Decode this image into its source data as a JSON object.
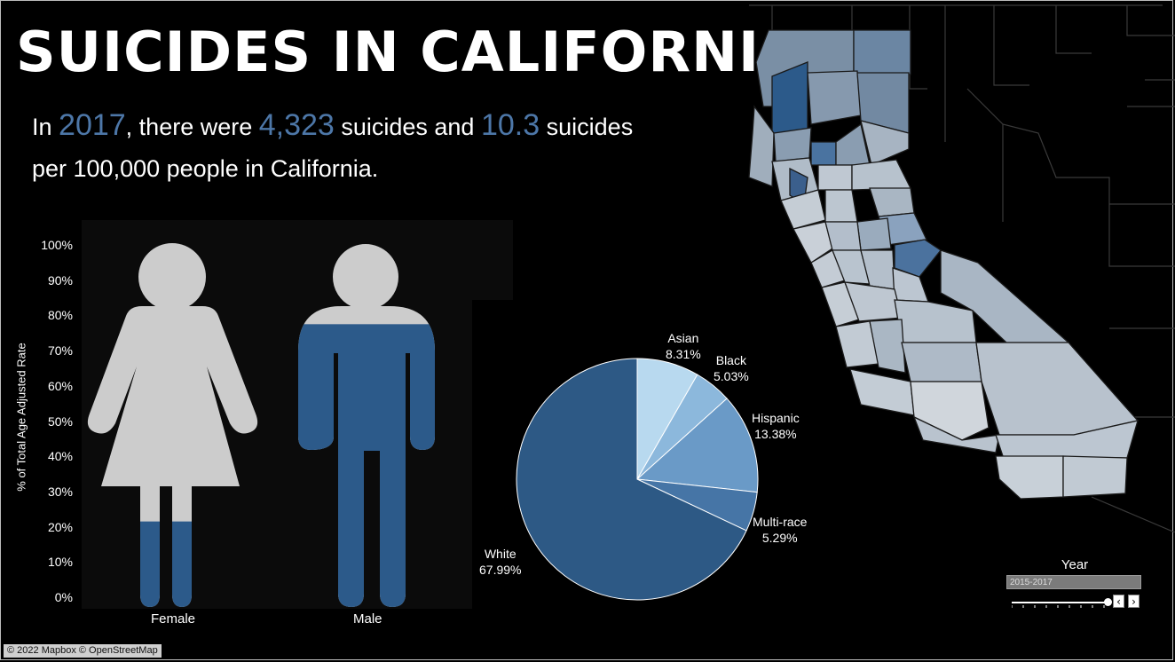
{
  "header": {
    "title": "SUICIDES IN CALIFORNIA",
    "summary": {
      "prefix": "In ",
      "year": "2017",
      "part2": ", there were ",
      "count": "4,323",
      "part3": " suicides and ",
      "rate": "10.3",
      "part4": " suicides",
      "line2": "per 100,000 people in California."
    }
  },
  "colors": {
    "accent": "#4d77a8",
    "figure_fill": "#2c5a8a",
    "figure_empty": "#cccccc",
    "panel_bg": "#0b0b0b"
  },
  "chart_data": [
    {
      "type": "bar",
      "categories": [
        "Female",
        "Male"
      ],
      "values": [
        21.5,
        77.5
      ],
      "ylabel": "% of Total Age Adjusted Rate",
      "ylim": [
        0,
        100
      ],
      "yticks": [
        "0%",
        "10%",
        "20%",
        "30%",
        "40%",
        "50%",
        "60%",
        "70%",
        "80%",
        "90%",
        "100%"
      ]
    },
    {
      "type": "pie",
      "slices": [
        {
          "label": "Asian",
          "value": 8.31,
          "value_label": "8.31%",
          "color": "#b8d9ef"
        },
        {
          "label": "Black",
          "value": 5.03,
          "value_label": "5.03%",
          "color": "#8cb8dc"
        },
        {
          "label": "Hispanic",
          "value": 13.38,
          "value_label": "13.38%",
          "color": "#6a9ac7"
        },
        {
          "label": "Multi-race",
          "value": 5.29,
          "value_label": "5.29%",
          "color": "#4675a6"
        },
        {
          "label": "White",
          "value": 67.99,
          "value_label": "67.99%",
          "color": "#2d5985"
        }
      ]
    }
  ],
  "filter": {
    "title": "Year",
    "selected": "2015-2017",
    "prev_icon": "‹",
    "next_icon": "›"
  },
  "map": {
    "attribution": "© 2022 Mapbox  © OpenStreetMap"
  }
}
